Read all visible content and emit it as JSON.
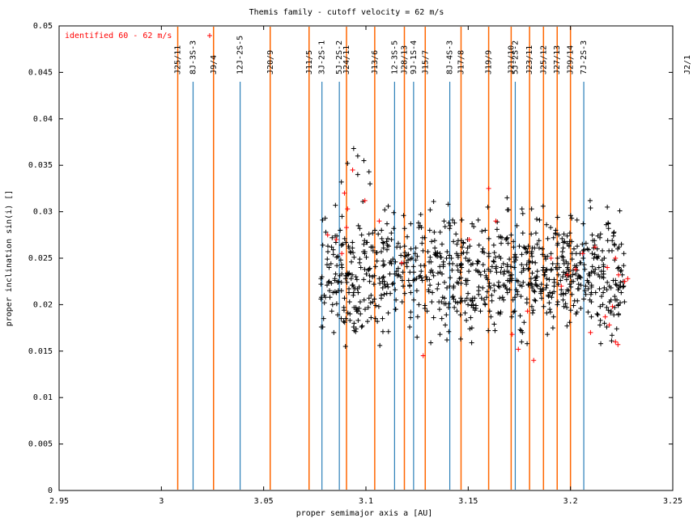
{
  "chart_data": {
    "type": "scatter",
    "title": "Themis family - cutoff velocity = 62 m/s",
    "xlabel": "proper semimajor axis a [AU]",
    "ylabel": "proper inclination sin(i) []",
    "xlim": [
      2.95,
      3.25
    ],
    "ylim": [
      0,
      0.05
    ],
    "x_ticks": [
      "2.95",
      "3",
      "3.05",
      "3.1",
      "3.15",
      "3.2",
      "3.25"
    ],
    "y_ticks": [
      "0",
      "0.005",
      "0.01",
      "0.015",
      "0.02",
      "0.025",
      "0.03",
      "0.035",
      "0.04",
      "0.045",
      "0.05"
    ],
    "grid": false,
    "legend": {
      "position": "top-left",
      "entries": [
        {
          "label": "identified 60 - 62 m/s",
          "color": "#ff0000",
          "marker": "+"
        }
      ]
    },
    "resonances_mmr": [
      {
        "label": "J25/11",
        "a": 3.008
      },
      {
        "label": "J9/4",
        "a": 3.0255
      },
      {
        "label": "J20/9",
        "a": 3.0532
      },
      {
        "label": "J11/5",
        "a": 3.0722
      },
      {
        "label": "J24/11",
        "a": 3.0905
      },
      {
        "label": "J13/6",
        "a": 3.1043
      },
      {
        "label": "J28/13",
        "a": 3.1188
      },
      {
        "label": "J15/7",
        "a": 3.129
      },
      {
        "label": "J17/8",
        "a": 3.1465
      },
      {
        "label": "J19/9",
        "a": 3.16
      },
      {
        "label": "J21/10",
        "a": 3.171
      },
      {
        "label": "J23/11",
        "a": 3.18
      },
      {
        "label": "J25/12",
        "a": 3.1868
      },
      {
        "label": "J27/13",
        "a": 3.1935
      },
      {
        "label": "J29/14",
        "a": 3.2
      },
      {
        "label": "J2/1",
        "a": 3.278
      }
    ],
    "resonances_3body": [
      {
        "label": "8J-3S-3",
        "a": 3.0155
      },
      {
        "label": "12J-2S-5",
        "a": 3.0385
      },
      {
        "label": "3J-2S-1",
        "a": 3.0785
      },
      {
        "label": "5J-2S-2",
        "a": 3.087
      },
      {
        "label": "12-3S-5",
        "a": 3.114
      },
      {
        "label": "9J-1S-4",
        "a": 3.1233
      },
      {
        "label": "8J-4S-3",
        "a": 3.141
      },
      {
        "label": "5J-2S-2",
        "a": 3.173
      },
      {
        "label": "7J-2S-3",
        "a": 3.2065
      }
    ],
    "series": [
      {
        "color": "#000000",
        "marker": "+",
        "points": []
      },
      {
        "name": "identified 60 - 62 m/s",
        "color": "#ff0000",
        "marker": "+",
        "points": [
          [
            3.0813,
            0.0275
          ],
          [
            3.0855,
            0.027
          ],
          [
            3.0882,
            0.0255
          ],
          [
            3.0895,
            0.032
          ],
          [
            3.091,
            0.0303
          ],
          [
            3.0905,
            0.0283
          ],
          [
            3.0935,
            0.0345
          ],
          [
            3.0995,
            0.0312
          ],
          [
            3.1065,
            0.029
          ],
          [
            3.1175,
            0.0245
          ],
          [
            3.128,
            0.0145
          ],
          [
            3.1505,
            0.027
          ],
          [
            3.16,
            0.0325
          ],
          [
            3.1635,
            0.029
          ],
          [
            3.1715,
            0.0168
          ],
          [
            3.1745,
            0.0152
          ],
          [
            3.179,
            0.0193
          ],
          [
            3.182,
            0.014
          ],
          [
            3.1905,
            0.025
          ],
          [
            3.1985,
            0.0232
          ],
          [
            3.206,
            0.0255
          ],
          [
            3.212,
            0.0262
          ],
          [
            3.218,
            0.024
          ],
          [
            3.222,
            0.025
          ],
          [
            3.2235,
            0.0232
          ],
          [
            3.2265,
            0.0225
          ],
          [
            3.228,
            0.0228
          ],
          [
            3.2205,
            0.0198
          ],
          [
            3.219,
            0.0178
          ],
          [
            3.222,
            0.016
          ],
          [
            3.2232,
            0.0157
          ],
          [
            3.217,
            0.0187
          ],
          [
            3.2098,
            0.017
          ],
          [
            3.2025,
            0.0238
          ],
          [
            3.1955,
            0.022
          ]
        ]
      }
    ]
  }
}
